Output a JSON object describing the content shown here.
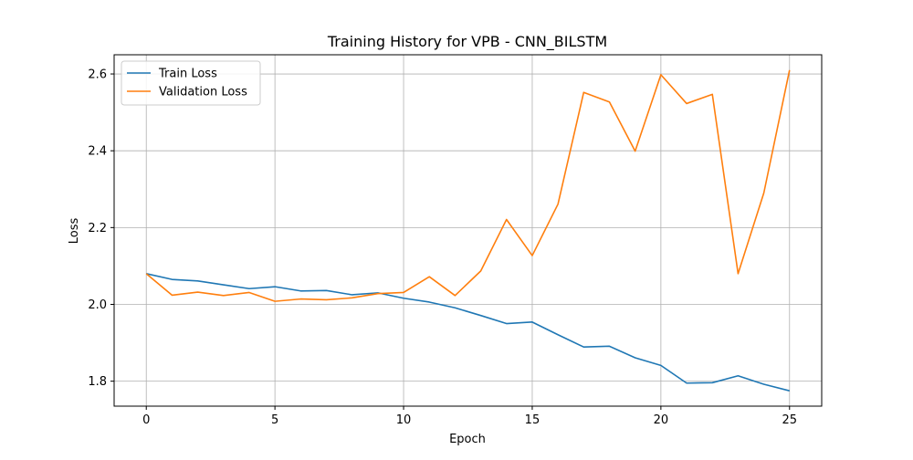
{
  "chart_data": {
    "type": "line",
    "title": "Training History for VPB - CNN_BILSTM",
    "xlabel": "Epoch",
    "ylabel": "Loss",
    "xlim": [
      -1.25,
      26.25
    ],
    "ylim": [
      1.735,
      2.65
    ],
    "xticks": [
      0,
      5,
      10,
      15,
      20,
      25
    ],
    "xtick_labels": [
      "0",
      "5",
      "10",
      "15",
      "20",
      "25"
    ],
    "yticks": [
      1.8,
      2.0,
      2.2,
      2.4,
      2.6
    ],
    "ytick_labels": [
      "1.8",
      "2.0",
      "2.2",
      "2.4",
      "2.6"
    ],
    "grid": true,
    "legend_position": "top-left",
    "x": [
      0,
      1,
      2,
      3,
      4,
      5,
      6,
      7,
      8,
      9,
      10,
      11,
      12,
      13,
      14,
      15,
      16,
      17,
      18,
      19,
      20,
      21,
      22,
      23,
      24,
      25
    ],
    "series": [
      {
        "name": "Train Loss",
        "color": "#1f77b4",
        "values": [
          2.08,
          2.065,
          2.061,
          2.051,
          2.041,
          2.046,
          2.035,
          2.036,
          2.025,
          2.03,
          2.016,
          2.006,
          1.991,
          1.971,
          1.95,
          1.954,
          1.921,
          1.889,
          1.891,
          1.861,
          1.841,
          1.795,
          1.796,
          1.814,
          1.792,
          1.775
        ]
      },
      {
        "name": "Validation Loss",
        "color": "#ff7f0e",
        "values": [
          2.08,
          2.024,
          2.032,
          2.023,
          2.031,
          2.008,
          2.014,
          2.012,
          2.017,
          2.028,
          2.031,
          2.072,
          2.023,
          2.087,
          2.221,
          2.127,
          2.261,
          2.552,
          2.527,
          2.399,
          2.598,
          2.523,
          2.547,
          2.08,
          2.29,
          2.61
        ]
      }
    ]
  }
}
